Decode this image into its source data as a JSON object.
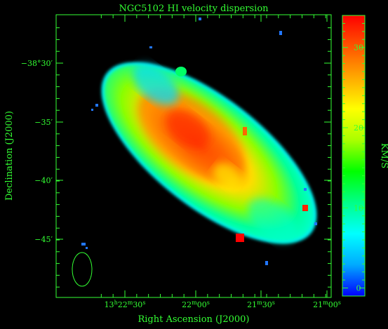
{
  "chart_data": {
    "type": "heatmap",
    "title": "NGC5102   HI velocity dispersion",
    "xlabel": "Right Ascension (J2000)",
    "ylabel": "Declination (J2000)",
    "colorbar_label": "KM/S",
    "colorbar_ticks": [
      "0",
      "10",
      "20",
      "30"
    ],
    "colorbar_range": [
      -1,
      34
    ],
    "y_ticks": [
      "−38°30′",
      "−35′",
      "−40′",
      "−45′"
    ],
    "x_ticks": [
      {
        "h": "13",
        "hu": "h",
        "m": "22",
        "mu": "m",
        "s": "30",
        "su": "s"
      },
      {
        "m": "22",
        "mu": "m",
        "s": "00",
        "su": "s"
      },
      {
        "m": "21",
        "mu": "m",
        "s": "30",
        "su": "s"
      },
      {
        "m": "21",
        "mu": "m",
        "s": "00",
        "su": "s"
      }
    ],
    "grid": false,
    "colormap": [
      "#0000ff",
      "#00aaff",
      "#00ffff",
      "#00ff88",
      "#00ff00",
      "#aaff00",
      "#ffff00",
      "#ffaa00",
      "#ff5500",
      "#ff0000"
    ],
    "colors": {
      "axes": "#33ff33",
      "background": "#000000"
    }
  }
}
